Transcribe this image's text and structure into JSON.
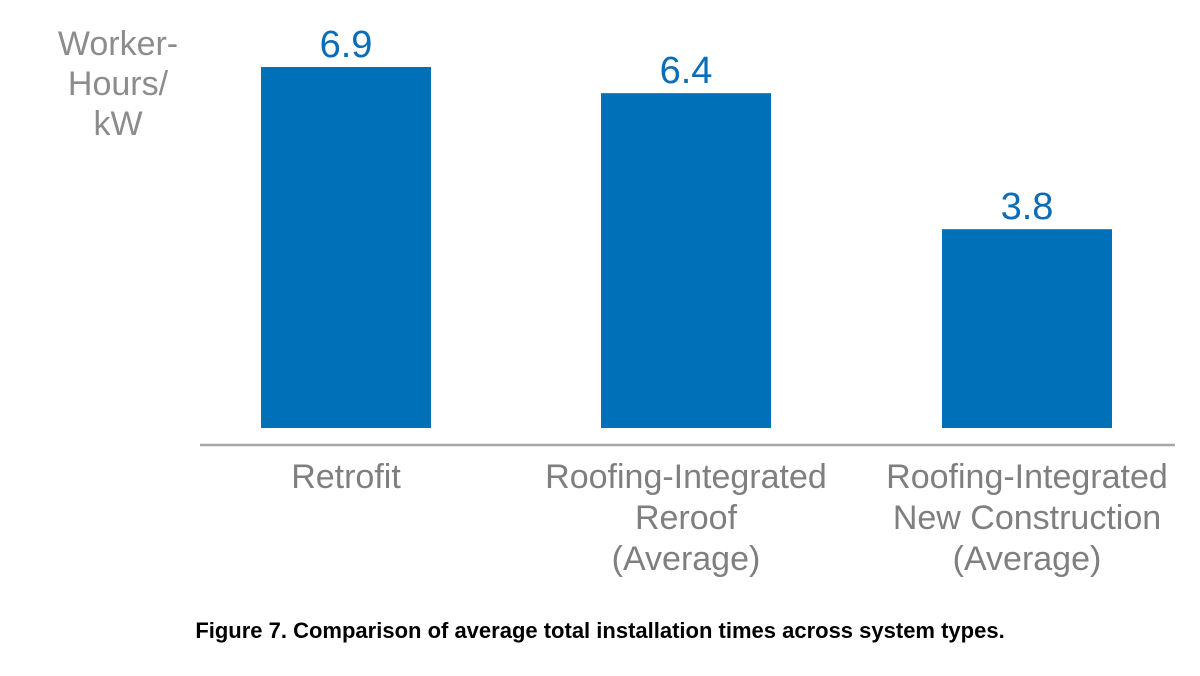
{
  "chart_data": {
    "type": "bar",
    "categories": [
      [
        "Retrofit"
      ],
      [
        "Roofing-Integrated",
        "Reroof",
        "(Average)"
      ],
      [
        "Roofing-Integrated",
        "New Construction",
        "(Average)"
      ]
    ],
    "values": [
      6.9,
      6.4,
      3.8
    ],
    "value_labels": [
      "6.9",
      "6.4",
      "3.8"
    ],
    "ylabel": [
      "Worker-",
      "Hours/",
      "kW"
    ],
    "ylim": [
      0,
      6.9
    ],
    "grid": false,
    "bar_color": "#0070b8",
    "value_label_color": "#0a6db6",
    "axis_color": "#a6a6a6",
    "text_color": "#7f7f7f"
  },
  "caption": "Figure 7. Comparison of average total installation times across system types."
}
